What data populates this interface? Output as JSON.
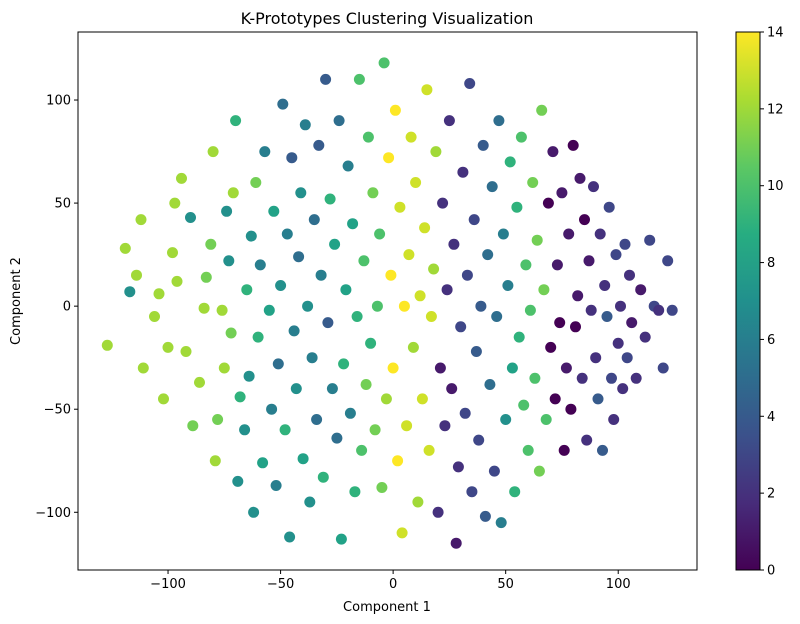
{
  "chart_data": {
    "type": "scatter",
    "title": "K-Prototypes Clustering Visualization",
    "xlabel": "Component 1",
    "ylabel": "Component 2",
    "xlim": [
      -140,
      135
    ],
    "ylim": [
      -128,
      133
    ],
    "xticks": [
      -100,
      -50,
      0,
      50,
      100
    ],
    "yticks": [
      -100,
      -50,
      0,
      50,
      100
    ],
    "xtick_labels": [
      "−100",
      "−50",
      "0",
      "50",
      "100"
    ],
    "ytick_labels": [
      "−100",
      "−50",
      "0",
      "50",
      "100"
    ],
    "colorbar": {
      "colormap": "viridis",
      "range": [
        0,
        14
      ],
      "ticks": [
        0,
        2,
        4,
        6,
        8,
        10,
        12,
        14
      ],
      "tick_labels": [
        "0",
        "2",
        "4",
        "6",
        "8",
        "10",
        "12",
        "14"
      ]
    },
    "grid": false,
    "points": [
      [
        -127,
        -19,
        12
      ],
      [
        -119,
        28,
        12
      ],
      [
        -117,
        7,
        7
      ],
      [
        -114,
        15,
        12
      ],
      [
        -112,
        42,
        12
      ],
      [
        -111,
        -30,
        12
      ],
      [
        -106,
        -5,
        12
      ],
      [
        -104,
        6,
        12
      ],
      [
        -102,
        -45,
        12
      ],
      [
        -100,
        -20,
        12
      ],
      [
        -98,
        26,
        12
      ],
      [
        -97,
        50,
        12
      ],
      [
        -96,
        12,
        12
      ],
      [
        -94,
        62,
        12
      ],
      [
        -92,
        -22,
        12
      ],
      [
        -90,
        43,
        7
      ],
      [
        -89,
        -58,
        11
      ],
      [
        -86,
        -37,
        12
      ],
      [
        -84,
        -1,
        12
      ],
      [
        -83,
        14,
        11
      ],
      [
        -81,
        30,
        11
      ],
      [
        -80,
        75,
        12
      ],
      [
        -79,
        -75,
        12
      ],
      [
        -78,
        -55,
        11
      ],
      [
        -76,
        -2,
        12
      ],
      [
        -75,
        -30,
        12
      ],
      [
        -74,
        46,
        7
      ],
      [
        -73,
        22,
        7
      ],
      [
        -72,
        -13,
        11
      ],
      [
        -71,
        55,
        12
      ],
      [
        -70,
        90,
        9
      ],
      [
        -69,
        -85,
        7
      ],
      [
        -68,
        -44,
        9
      ],
      [
        -66,
        -60,
        7
      ],
      [
        -65,
        8,
        9
      ],
      [
        -64,
        -34,
        7
      ],
      [
        -63,
        34,
        7
      ],
      [
        -62,
        -100,
        7
      ],
      [
        -61,
        60,
        11
      ],
      [
        -60,
        -15,
        9
      ],
      [
        -59,
        20,
        6
      ],
      [
        -58,
        -76,
        8
      ],
      [
        -57,
        75,
        6
      ],
      [
        -55,
        -2,
        8
      ],
      [
        -54,
        -50,
        6
      ],
      [
        -53,
        46,
        8
      ],
      [
        -52,
        -87,
        6
      ],
      [
        -51,
        -28,
        5
      ],
      [
        -50,
        10,
        7
      ],
      [
        -49,
        98,
        5
      ],
      [
        -48,
        -60,
        9
      ],
      [
        -47,
        35,
        6
      ],
      [
        -46,
        -112,
        7
      ],
      [
        -45,
        72,
        4
      ],
      [
        -44,
        -12,
        6
      ],
      [
        -43,
        -40,
        7
      ],
      [
        -42,
        24,
        5
      ],
      [
        -41,
        55,
        7
      ],
      [
        -40,
        -74,
        8
      ],
      [
        -39,
        88,
        6
      ],
      [
        -38,
        0,
        7
      ],
      [
        -37,
        -95,
        7
      ],
      [
        -36,
        -25,
        6
      ],
      [
        -35,
        42,
        5
      ],
      [
        -34,
        -55,
        5
      ],
      [
        -33,
        78,
        4
      ],
      [
        -32,
        15,
        6
      ],
      [
        -31,
        -83,
        9
      ],
      [
        -30,
        110,
        4
      ],
      [
        -29,
        -8,
        4
      ],
      [
        -28,
        52,
        9
      ],
      [
        -27,
        -40,
        6
      ],
      [
        -26,
        30,
        8
      ],
      [
        -25,
        -64,
        5
      ],
      [
        -24,
        90,
        5
      ],
      [
        -23,
        -113,
        8
      ],
      [
        -22,
        -28,
        9
      ],
      [
        -21,
        8,
        8
      ],
      [
        -20,
        68,
        6
      ],
      [
        -19,
        -52,
        6
      ],
      [
        -18,
        40,
        8
      ],
      [
        -17,
        -90,
        9
      ],
      [
        -16,
        -5,
        9
      ],
      [
        -15,
        110,
        10
      ],
      [
        -14,
        -70,
        10
      ],
      [
        -13,
        22,
        10
      ],
      [
        -12,
        -38,
        11
      ],
      [
        -11,
        82,
        10
      ],
      [
        -10,
        -18,
        9
      ],
      [
        -9,
        55,
        11
      ],
      [
        -8,
        -60,
        11
      ],
      [
        -7,
        0,
        10
      ],
      [
        -6,
        35,
        10
      ],
      [
        -5,
        -88,
        11
      ],
      [
        -4,
        118,
        10
      ],
      [
        -3,
        -45,
        12
      ],
      [
        -2,
        72,
        14
      ],
      [
        -1,
        15,
        14
      ],
      [
        0,
        -30,
        14
      ],
      [
        1,
        95,
        14
      ],
      [
        2,
        -75,
        14
      ],
      [
        3,
        48,
        13
      ],
      [
        4,
        -110,
        13
      ],
      [
        5,
        0,
        14
      ],
      [
        6,
        -58,
        13
      ],
      [
        7,
        25,
        13
      ],
      [
        8,
        82,
        13
      ],
      [
        9,
        -20,
        12
      ],
      [
        10,
        60,
        13
      ],
      [
        11,
        -95,
        12
      ],
      [
        12,
        5,
        13
      ],
      [
        13,
        -45,
        13
      ],
      [
        14,
        38,
        13
      ],
      [
        15,
        105,
        13
      ],
      [
        16,
        -70,
        13
      ],
      [
        17,
        -5,
        13
      ],
      [
        18,
        18,
        12
      ],
      [
        19,
        75,
        12
      ],
      [
        20,
        -100,
        2
      ],
      [
        21,
        -30,
        1
      ],
      [
        22,
        50,
        2
      ],
      [
        23,
        -58,
        2
      ],
      [
        24,
        8,
        2
      ],
      [
        25,
        90,
        2
      ],
      [
        26,
        -40,
        1
      ],
      [
        27,
        30,
        2
      ],
      [
        28,
        -115,
        1
      ],
      [
        29,
        -78,
        2
      ],
      [
        30,
        -10,
        3
      ],
      [
        31,
        65,
        2
      ],
      [
        32,
        -52,
        3
      ],
      [
        33,
        15,
        3
      ],
      [
        34,
        108,
        3
      ],
      [
        35,
        -90,
        3
      ],
      [
        36,
        42,
        3
      ],
      [
        37,
        -22,
        4
      ],
      [
        38,
        -65,
        3
      ],
      [
        39,
        0,
        4
      ],
      [
        40,
        78,
        4
      ],
      [
        41,
        -102,
        4
      ],
      [
        42,
        25,
        5
      ],
      [
        43,
        -38,
        5
      ],
      [
        44,
        58,
        5
      ],
      [
        45,
        -80,
        3
      ],
      [
        46,
        -5,
        5
      ],
      [
        47,
        90,
        5
      ],
      [
        48,
        -105,
        6
      ],
      [
        49,
        35,
        6
      ],
      [
        50,
        -55,
        7
      ],
      [
        51,
        10,
        6
      ],
      [
        52,
        70,
        9
      ],
      [
        53,
        -30,
        8
      ],
      [
        54,
        -90,
        9
      ],
      [
        55,
        48,
        9
      ],
      [
        56,
        -15,
        9
      ],
      [
        57,
        82,
        10
      ],
      [
        58,
        -48,
        10
      ],
      [
        59,
        20,
        10
      ],
      [
        60,
        -70,
        10
      ],
      [
        61,
        -2,
        10
      ],
      [
        62,
        60,
        11
      ],
      [
        63,
        -35,
        10
      ],
      [
        64,
        32,
        11
      ],
      [
        65,
        -80,
        11
      ],
      [
        66,
        95,
        11
      ],
      [
        67,
        8,
        11
      ],
      [
        68,
        -55,
        10
      ],
      [
        69,
        50,
        0
      ],
      [
        70,
        -20,
        0
      ],
      [
        71,
        75,
        1
      ],
      [
        72,
        -45,
        0
      ],
      [
        73,
        20,
        1
      ],
      [
        74,
        -8,
        0
      ],
      [
        75,
        55,
        1
      ],
      [
        76,
        -70,
        0
      ],
      [
        77,
        -30,
        1
      ],
      [
        78,
        35,
        1
      ],
      [
        79,
        -50,
        0
      ],
      [
        80,
        78,
        0
      ],
      [
        81,
        -10,
        0
      ],
      [
        82,
        5,
        1
      ],
      [
        83,
        62,
        1
      ],
      [
        84,
        -35,
        2
      ],
      [
        85,
        42,
        0
      ],
      [
        86,
        -65,
        2
      ],
      [
        87,
        22,
        1
      ],
      [
        88,
        -2,
        2
      ],
      [
        89,
        58,
        2
      ],
      [
        90,
        -25,
        2
      ],
      [
        91,
        -45,
        4
      ],
      [
        92,
        35,
        2
      ],
      [
        93,
        -70,
        4
      ],
      [
        94,
        10,
        2
      ],
      [
        95,
        -5,
        4
      ],
      [
        96,
        48,
        3
      ],
      [
        97,
        -35,
        3
      ],
      [
        98,
        -55,
        2
      ],
      [
        99,
        25,
        3
      ],
      [
        100,
        -18,
        2
      ],
      [
        101,
        0,
        2
      ],
      [
        102,
        -40,
        2
      ],
      [
        103,
        30,
        3
      ],
      [
        104,
        -25,
        3
      ],
      [
        105,
        15,
        2
      ],
      [
        106,
        -8,
        1
      ],
      [
        108,
        -35,
        2
      ],
      [
        110,
        8,
        1
      ],
      [
        112,
        -15,
        2
      ],
      [
        114,
        32,
        3
      ],
      [
        116,
        0,
        3
      ],
      [
        118,
        -2,
        2
      ],
      [
        120,
        -30,
        3
      ],
      [
        122,
        22,
        3
      ],
      [
        124,
        -2,
        3
      ]
    ]
  }
}
